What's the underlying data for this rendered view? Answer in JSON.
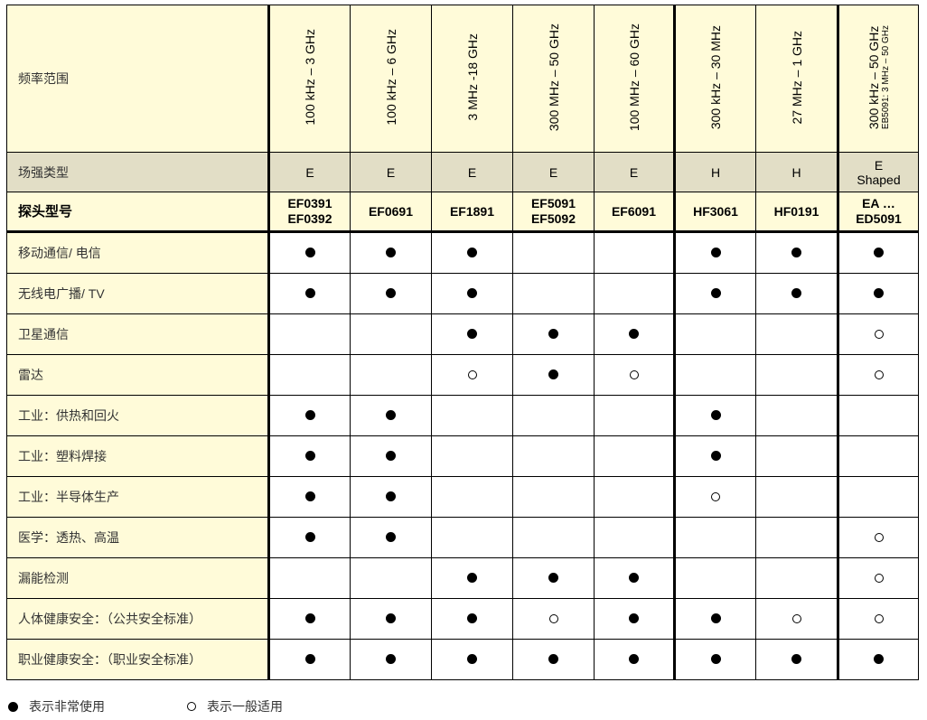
{
  "header": {
    "freq_label": "频率范围",
    "type_label": "场强类型",
    "model_label": "探头型号",
    "columns": [
      {
        "freq": "100 kHz – 3 GHz",
        "freq_note": "",
        "type": "E",
        "type2": "",
        "model": "EF0391",
        "model2": "EF0392"
      },
      {
        "freq": "100 kHz – 6 GHz",
        "freq_note": "",
        "type": "E",
        "type2": "",
        "model": "EF0691",
        "model2": ""
      },
      {
        "freq": "3 MHz -18 GHz",
        "freq_note": "",
        "type": "E",
        "type2": "",
        "model": "EF1891",
        "model2": ""
      },
      {
        "freq": "300 MHz – 50 GHz",
        "freq_note": "",
        "type": "E",
        "type2": "",
        "model": "EF5091",
        "model2": "EF5092"
      },
      {
        "freq": "100 MHz – 60 GHz",
        "freq_note": "",
        "type": "E",
        "type2": "",
        "model": "EF6091",
        "model2": ""
      },
      {
        "freq": "300 kHz – 30 MHz",
        "freq_note": "",
        "type": "H",
        "type2": "",
        "model": "HF3061",
        "model2": ""
      },
      {
        "freq": "27 MHz – 1 GHz",
        "freq_note": "",
        "type": "H",
        "type2": "",
        "model": "HF0191",
        "model2": ""
      },
      {
        "freq": "300 kHz – 50 GHz",
        "freq_note": "EB5091: 3 MHz – 50 GHz",
        "type": "E",
        "type2": "Shaped",
        "model": "EA …",
        "model2": "ED5091"
      }
    ]
  },
  "rows": [
    {
      "label": "移动通信/ 电信",
      "marks": [
        "full",
        "full",
        "full",
        "",
        "",
        "full",
        "full",
        "full"
      ]
    },
    {
      "label": "无线电广播/ TV",
      "marks": [
        "full",
        "full",
        "full",
        "",
        "",
        "full",
        "full",
        "full"
      ]
    },
    {
      "label": "卫星通信",
      "marks": [
        "",
        "",
        "full",
        "full",
        "full",
        "",
        "",
        "ring"
      ]
    },
    {
      "label": "雷达",
      "marks": [
        "",
        "",
        "ring",
        "full",
        "ring",
        "",
        "",
        "ring"
      ]
    },
    {
      "label": "工业：供热和回火",
      "marks": [
        "full",
        "full",
        "",
        "",
        "",
        "full",
        "",
        ""
      ]
    },
    {
      "label": "工业：塑料焊接",
      "marks": [
        "full",
        "full",
        "",
        "",
        "",
        "full",
        "",
        ""
      ]
    },
    {
      "label": "工业：半导体生产",
      "marks": [
        "full",
        "full",
        "",
        "",
        "",
        "ring",
        "",
        ""
      ]
    },
    {
      "label": "医学：透热、高温",
      "marks": [
        "full",
        "full",
        "",
        "",
        "",
        "",
        "",
        "ring"
      ]
    },
    {
      "label": "漏能检测",
      "marks": [
        "",
        "",
        "full",
        "full",
        "full",
        "",
        "",
        "ring"
      ]
    },
    {
      "label": "人体健康安全：（公共安全标准）",
      "marks": [
        "full",
        "full",
        "full",
        "ring",
        "full",
        "full",
        "ring",
        "ring"
      ]
    },
    {
      "label": "职业健康安全：（职业安全标准）",
      "marks": [
        "full",
        "full",
        "full",
        "full",
        "full",
        "full",
        "full",
        "full"
      ]
    }
  ],
  "legend": {
    "full": "表示非常使用",
    "ring": "表示一般适用"
  },
  "colors": {
    "label_bg": "#fffbd9",
    "type_row_bg": "#e2dec6"
  }
}
